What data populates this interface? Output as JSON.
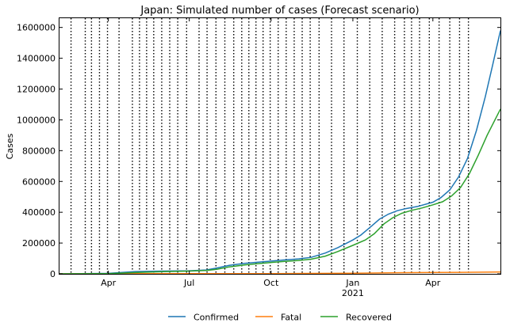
{
  "chart_data": {
    "type": "line",
    "title": "Japan: Simulated number of cases (Forecast scenario)",
    "xlabel": "",
    "ylabel": "Cases",
    "xlim": [
      "2020-02-06",
      "2021-06-16"
    ],
    "ylim": [
      0,
      1660000
    ],
    "yticks": [
      0,
      200000,
      400000,
      600000,
      800000,
      1000000,
      1200000,
      1400000,
      1600000
    ],
    "xticks": [
      {
        "date": "2020-04-01",
        "label": "Apr",
        "sublabel": ""
      },
      {
        "date": "2020-07-01",
        "label": "Jul",
        "sublabel": ""
      },
      {
        "date": "2020-10-01",
        "label": "Oct",
        "sublabel": ""
      },
      {
        "date": "2021-01-01",
        "label": "Jan",
        "sublabel": "2021"
      },
      {
        "date": "2021-04-01",
        "label": "Apr",
        "sublabel": ""
      }
    ],
    "change_dates": [
      "2020-02-19",
      "2020-03-06",
      "2020-03-13",
      "2020-03-22",
      "2020-03-31",
      "2020-04-13",
      "2020-04-28",
      "2020-05-06",
      "2020-05-14",
      "2020-05-22",
      "2020-05-31",
      "2020-06-09",
      "2020-06-18",
      "2020-06-28",
      "2020-07-12",
      "2020-07-21",
      "2020-07-31",
      "2020-08-10",
      "2020-08-20",
      "2020-08-29",
      "2020-09-06",
      "2020-09-14",
      "2020-09-22",
      "2020-09-30",
      "2020-10-09",
      "2020-10-18",
      "2020-10-27",
      "2020-11-05",
      "2020-11-14",
      "2020-11-24",
      "2020-12-08",
      "2020-12-22",
      "2021-01-06",
      "2021-01-20",
      "2021-02-03",
      "2021-02-17",
      "2021-02-28",
      "2021-03-08",
      "2021-03-17",
      "2021-03-28",
      "2021-04-08",
      "2021-04-20",
      "2021-05-01",
      "2021-05-11"
    ],
    "legend_position": "bottom-center",
    "grid": false,
    "series": [
      {
        "name": "Confirmed",
        "color": "#1f77b4",
        "points": [
          [
            "2020-02-06",
            0
          ],
          [
            "2020-03-01",
            1000
          ],
          [
            "2020-04-01",
            3000
          ],
          [
            "2020-05-01",
            15000
          ],
          [
            "2020-06-01",
            18000
          ],
          [
            "2020-07-01",
            20000
          ],
          [
            "2020-07-20",
            25000
          ],
          [
            "2020-08-01",
            38000
          ],
          [
            "2020-08-15",
            55000
          ],
          [
            "2020-09-01",
            68000
          ],
          [
            "2020-09-15",
            75000
          ],
          [
            "2020-10-01",
            83000
          ],
          [
            "2020-10-15",
            90000
          ],
          [
            "2020-11-01",
            97000
          ],
          [
            "2020-11-15",
            107000
          ],
          [
            "2020-12-01",
            135000
          ],
          [
            "2020-12-15",
            170000
          ],
          [
            "2021-01-01",
            220000
          ],
          [
            "2021-01-10",
            252000
          ],
          [
            "2021-01-20",
            300000
          ],
          [
            "2021-01-31",
            355000
          ],
          [
            "2021-02-10",
            388000
          ],
          [
            "2021-02-20",
            410000
          ],
          [
            "2021-03-01",
            423000
          ],
          [
            "2021-03-15",
            438000
          ],
          [
            "2021-04-01",
            465000
          ],
          [
            "2021-04-10",
            495000
          ],
          [
            "2021-04-20",
            545000
          ],
          [
            "2021-04-30",
            630000
          ],
          [
            "2021-05-10",
            750000
          ],
          [
            "2021-05-20",
            930000
          ],
          [
            "2021-05-30",
            1150000
          ],
          [
            "2021-06-07",
            1350000
          ],
          [
            "2021-06-16",
            1580000
          ]
        ]
      },
      {
        "name": "Fatal",
        "color": "#ff7f0e",
        "points": [
          [
            "2020-02-06",
            0
          ],
          [
            "2020-06-01",
            900
          ],
          [
            "2020-10-01",
            1600
          ],
          [
            "2021-01-01",
            3600
          ],
          [
            "2021-03-01",
            7800
          ],
          [
            "2021-04-01",
            8800
          ],
          [
            "2021-05-01",
            9800
          ],
          [
            "2021-06-16",
            12500
          ]
        ]
      },
      {
        "name": "Recovered",
        "color": "#2ca02c",
        "points": [
          [
            "2020-02-06",
            0
          ],
          [
            "2020-03-01",
            300
          ],
          [
            "2020-04-01",
            1500
          ],
          [
            "2020-05-01",
            8000
          ],
          [
            "2020-06-01",
            14000
          ],
          [
            "2020-07-01",
            18000
          ],
          [
            "2020-07-20",
            22000
          ],
          [
            "2020-08-01",
            30000
          ],
          [
            "2020-08-15",
            45000
          ],
          [
            "2020-09-01",
            58000
          ],
          [
            "2020-09-15",
            66000
          ],
          [
            "2020-10-01",
            74000
          ],
          [
            "2020-10-15",
            80000
          ],
          [
            "2020-11-01",
            87000
          ],
          [
            "2020-11-15",
            95000
          ],
          [
            "2020-12-01",
            115000
          ],
          [
            "2020-12-15",
            145000
          ],
          [
            "2021-01-01",
            185000
          ],
          [
            "2021-01-15",
            220000
          ],
          [
            "2021-01-25",
            260000
          ],
          [
            "2021-02-05",
            325000
          ],
          [
            "2021-02-15",
            365000
          ],
          [
            "2021-02-25",
            393000
          ],
          [
            "2021-03-08",
            412000
          ],
          [
            "2021-03-20",
            428000
          ],
          [
            "2021-04-01",
            448000
          ],
          [
            "2021-04-12",
            468000
          ],
          [
            "2021-04-22",
            505000
          ],
          [
            "2021-05-02",
            560000
          ],
          [
            "2021-05-12",
            650000
          ],
          [
            "2021-05-22",
            770000
          ],
          [
            "2021-06-01",
            900000
          ],
          [
            "2021-06-16",
            1070000
          ]
        ]
      }
    ]
  }
}
